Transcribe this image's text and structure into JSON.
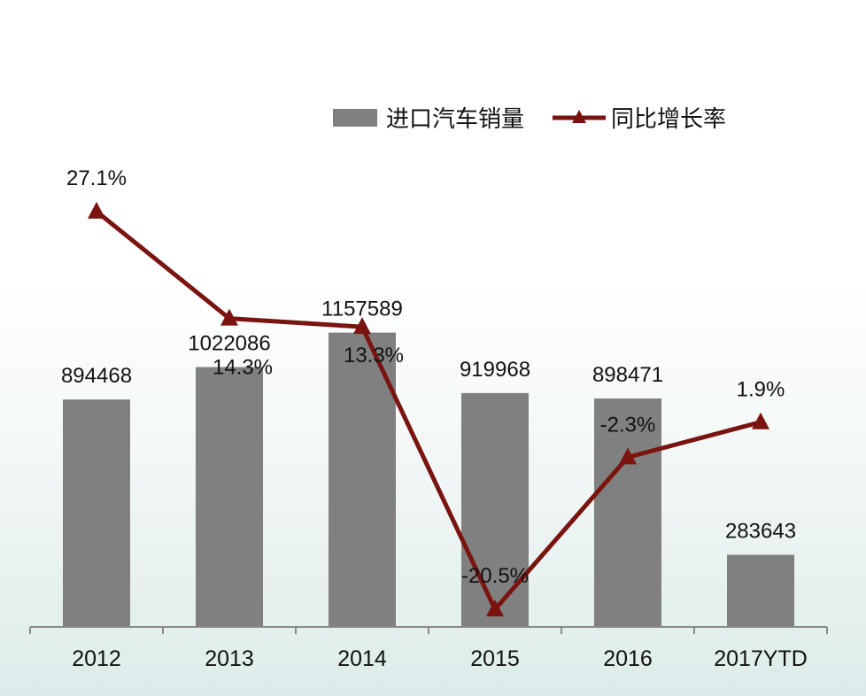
{
  "chart_data": {
    "type": "bar",
    "categories": [
      "2012",
      "2013",
      "2014",
      "2015",
      "2016",
      "2017YTD"
    ],
    "series": [
      {
        "name": "进口汽车销量",
        "type": "bar",
        "values": [
          894468,
          1022086,
          1157589,
          919968,
          898471,
          283643
        ],
        "labels": [
          "894468",
          "1022086",
          "1157589",
          "919968",
          "898471",
          "283643"
        ],
        "color": "#808080"
      },
      {
        "name": "同比增长率",
        "type": "line",
        "values": [
          27.1,
          14.3,
          13.3,
          -20.5,
          -2.3,
          1.9
        ],
        "labels": [
          "27.1%",
          "14.3%",
          "13.3%",
          "-20.5%",
          "-2.3%",
          "1.9%"
        ],
        "color": "#7a1410",
        "marker": "triangle"
      }
    ],
    "ylim_bar": [
      0,
      1400000
    ],
    "ylim_line": [
      -30,
      40
    ],
    "grid": false,
    "legend_position": "top-right"
  }
}
